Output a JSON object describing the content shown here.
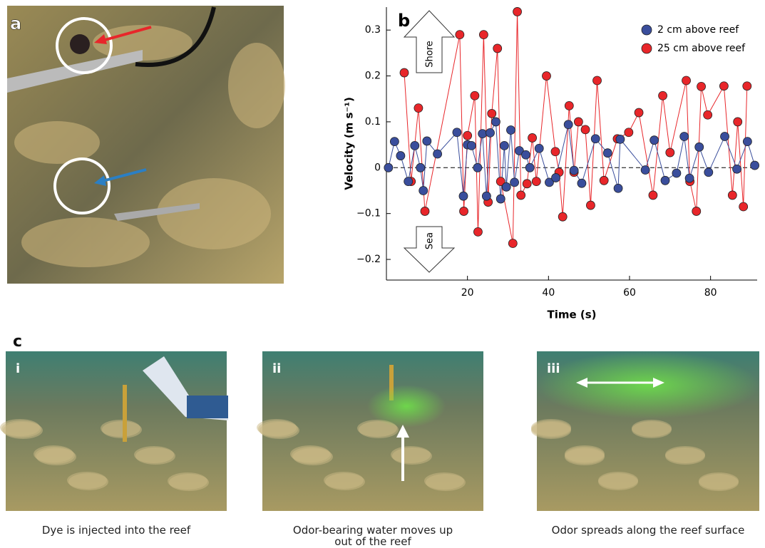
{
  "chart_data": {
    "type": "line",
    "annotations": [
      "b",
      "Shore",
      "Sea"
    ],
    "xlabel": "Time (s)",
    "ylabel": "Velocity (m s⁻¹)",
    "xlim": [
      0,
      91.5
    ],
    "xticks": [
      20,
      40,
      60,
      80
    ],
    "ylim": [
      -0.245,
      0.35
    ],
    "yticks": [
      {
        "value": -0.2,
        "label": "−0.2"
      },
      {
        "value": -0.1,
        "label": "−0.1"
      },
      0,
      0.1,
      0.2,
      0.3
    ],
    "zero_line": true,
    "legend": "upper right",
    "series": [
      {
        "name": "2 cm above reef",
        "color": "#3a4e9c",
        "x": [
          0.5,
          2,
          3.5,
          5.4,
          7,
          8.4,
          9.1,
          10,
          12.6,
          17.4,
          19,
          20,
          21,
          22.5,
          23.7,
          24.7,
          25.6,
          27,
          28.2,
          29.1,
          29.6,
          30.7,
          31.6,
          32.8,
          34.4,
          35.4,
          37.7,
          40.2,
          41.8,
          44.9,
          46.3,
          48.2,
          51.6,
          54.6,
          57.2,
          57.7,
          63.9,
          66.1,
          68.8,
          71.6,
          73.5,
          74.8,
          77.2,
          79.5,
          83.5,
          86.5,
          89.1,
          90.9
        ],
        "values": [
          0,
          0.057,
          0.026,
          -0.03,
          0.048,
          0,
          -0.05,
          0.058,
          0.03,
          0.077,
          -0.062,
          0.05,
          0.048,
          0,
          0.074,
          -0.062,
          0.076,
          0.1,
          -0.068,
          0.048,
          -0.042,
          0.082,
          -0.032,
          0.037,
          0.028,
          0,
          0.042,
          -0.032,
          -0.022,
          0.094,
          -0.006,
          -0.034,
          0.063,
          0.032,
          -0.045,
          0.062,
          -0.005,
          0.06,
          -0.028,
          -0.012,
          0.068,
          -0.023,
          0.045,
          -0.01,
          0.068,
          -0.003,
          0.057,
          0.005
        ]
      },
      {
        "name": "25 cm above reef",
        "color": "#e8262a",
        "x": [
          4.4,
          6.1,
          7.9,
          9.5,
          18.1,
          19.1,
          20,
          21.8,
          22.6,
          24,
          25.1,
          26,
          27.4,
          28.2,
          31.2,
          32.3,
          33.2,
          34.7,
          36,
          37,
          39.5,
          41.7,
          42.6,
          43.5,
          45.1,
          46.3,
          47.4,
          49.1,
          50.4,
          52,
          53.7,
          57,
          59.8,
          62.3,
          65.8,
          68.2,
          70,
          74,
          74.9,
          76.5,
          77.7,
          79.3,
          83.3,
          85.4,
          86.7,
          88.1,
          89
        ],
        "values": [
          0.207,
          -0.03,
          0.13,
          -0.095,
          0.29,
          -0.095,
          0.07,
          0.157,
          -0.14,
          0.29,
          -0.075,
          0.118,
          0.26,
          -0.03,
          -0.165,
          0.34,
          -0.06,
          -0.035,
          0.065,
          -0.03,
          0.2,
          0.035,
          -0.01,
          -0.107,
          0.135,
          -0.01,
          0.1,
          0.083,
          -0.082,
          0.19,
          -0.028,
          0.063,
          0.077,
          0.12,
          -0.06,
          0.157,
          0.033,
          0.19,
          -0.03,
          -0.095,
          0.177,
          0.115,
          0.178,
          -0.06,
          0.1,
          -0.085,
          0.178
        ]
      }
    ]
  },
  "panels": {
    "a": "a",
    "c": "c",
    "photos": [
      {
        "label": "i",
        "caption": "Dye is injected into the reef"
      },
      {
        "label": "ii",
        "caption": "Odor-bearing water moves up out of the reef"
      },
      {
        "label": "iii",
        "caption": "Odor spreads along the reef surface"
      }
    ]
  }
}
